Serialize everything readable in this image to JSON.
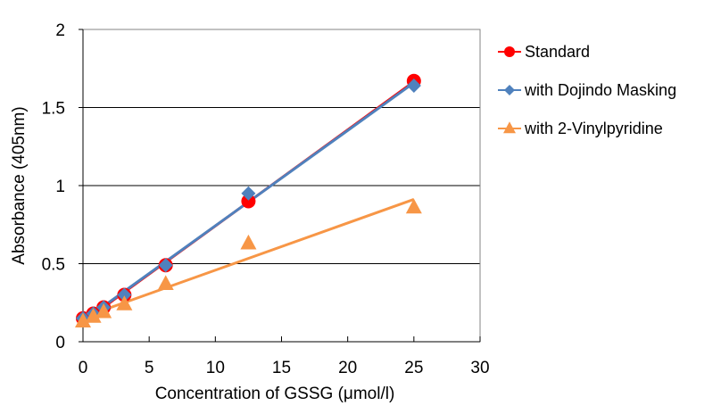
{
  "chart_data": {
    "type": "scatter",
    "title": "",
    "xlabel": "Concentration of  GSSG (μmol/l)",
    "ylabel": "Absorbance (405nm)",
    "xlim": [
      0,
      30
    ],
    "ylim": [
      0,
      2
    ],
    "xticks": [
      0,
      5,
      10,
      15,
      20,
      25,
      30
    ],
    "yticks": [
      0,
      0.5,
      1,
      1.5,
      2
    ],
    "xtick_labels": [
      "0",
      "5",
      "10",
      "15",
      "20",
      "25",
      "30"
    ],
    "ytick_labels": [
      "0",
      "0.5",
      "1",
      "1.5",
      "2"
    ],
    "grid": "horizontal",
    "legend_position": "right",
    "x": [
      0,
      0.78,
      1.56,
      3.125,
      6.25,
      12.5,
      25
    ],
    "series": [
      {
        "name": "Standard",
        "marker": "circle",
        "color": "#FF0000",
        "values": [
          0.15,
          0.18,
          0.22,
          0.3,
          0.49,
          0.9,
          1.67
        ],
        "trendline": "linear"
      },
      {
        "name": "with Dojindo Masking",
        "marker": "diamond",
        "color": "#4F81BD",
        "values": [
          0.15,
          0.18,
          0.22,
          0.3,
          0.49,
          0.95,
          1.64
        ],
        "trendline": "linear"
      },
      {
        "name": "with 2-Vinylpyridine",
        "marker": "triangle",
        "color": "#F79646",
        "values": [
          0.13,
          0.16,
          0.19,
          0.24,
          0.37,
          0.63,
          0.86
        ],
        "trendline": "linear"
      }
    ]
  }
}
